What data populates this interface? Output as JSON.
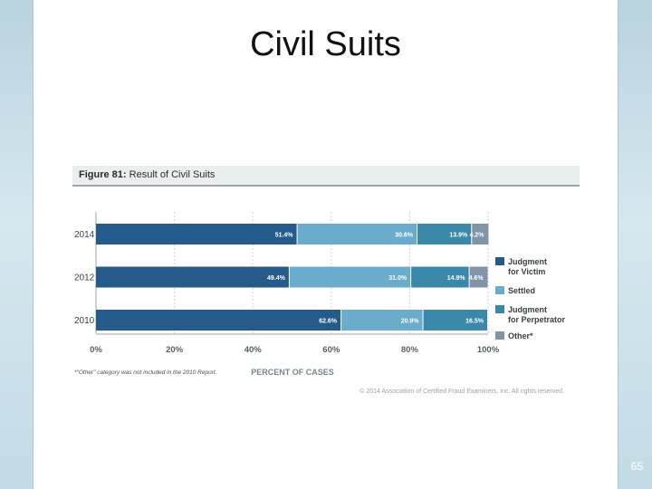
{
  "slide": {
    "title": "Civil Suits",
    "page_number": "65"
  },
  "figure": {
    "number_label": "Figure 81:",
    "title": "Result of Civil Suits",
    "footnote": "*\"Other\" category was not included in the 2010 Report.",
    "copyright": "© 2014 Association of Certified Fraud Examiners, Inc. All rights reserved."
  },
  "chart_data": {
    "type": "bar",
    "orientation": "horizontal",
    "stacked": true,
    "title": "Result of Civil Suits",
    "xlabel": "PERCENT OF CASES",
    "ylabel": "",
    "xlim": [
      0,
      100
    ],
    "x_ticks": [
      "0%",
      "20%",
      "40%",
      "60%",
      "80%",
      "100%"
    ],
    "x_tick_values": [
      0,
      20,
      40,
      60,
      80,
      100
    ],
    "categories": [
      "2014",
      "2012",
      "2010"
    ],
    "series": [
      {
        "name": "Judgment for Victim",
        "legend_lines": [
          "Judgment",
          "for Victim"
        ],
        "color": "#245b8a",
        "values": [
          51.4,
          49.4,
          62.6
        ],
        "labels": [
          "51.4%",
          "49.4%",
          "62.6%"
        ]
      },
      {
        "name": "Settled",
        "legend_lines": [
          "Settled"
        ],
        "color": "#6aaccb",
        "values": [
          30.6,
          31.0,
          20.9
        ],
        "labels": [
          "30.6%",
          "31.0%",
          "20.9%"
        ]
      },
      {
        "name": "Judgment for Perpetrator",
        "legend_lines": [
          "Judgment",
          "for Perpetrator"
        ],
        "color": "#3b89aa",
        "values": [
          13.9,
          14.9,
          16.5
        ],
        "labels": [
          "13.9%",
          "14.9%",
          "16.5%"
        ]
      },
      {
        "name": "Other*",
        "legend_lines": [
          "Other*"
        ],
        "color": "#7f95a6",
        "values": [
          4.2,
          4.6,
          0
        ],
        "labels": [
          "4.2%",
          "4.6%",
          ""
        ]
      }
    ],
    "grid": true,
    "legend_position": "right"
  }
}
